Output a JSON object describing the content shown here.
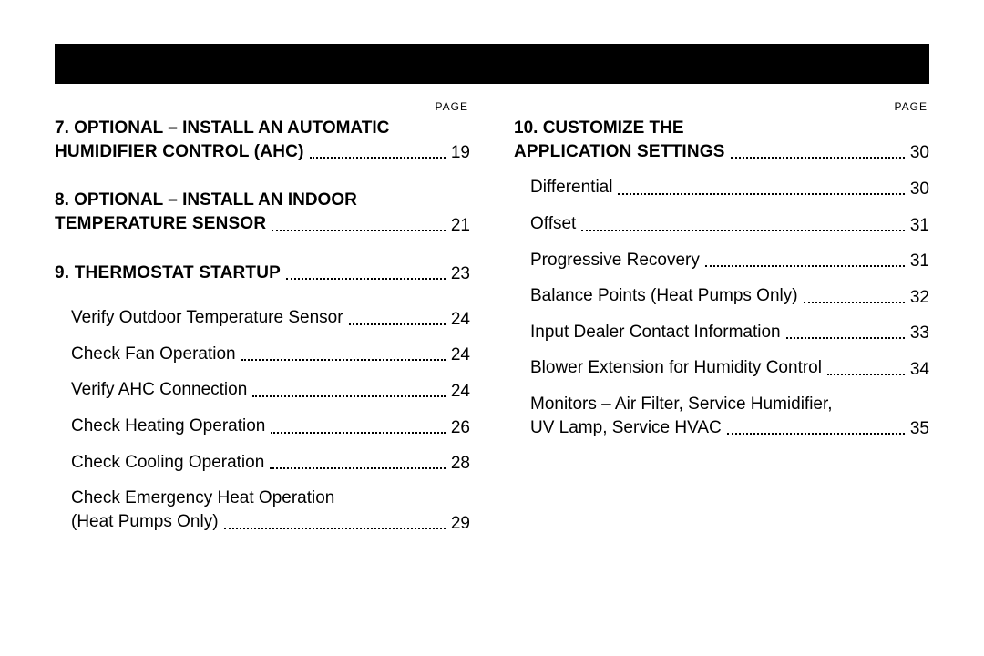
{
  "pageLabel": "PAGE",
  "left": [
    {
      "type": "section",
      "multi": true,
      "num": "7.",
      "line1": "OPTIONAL – INSTALL AN AUTOMATIC",
      "line2": "HUMIDIFIER CONTROL (AHC)",
      "page": "19"
    },
    {
      "type": "section",
      "multi": true,
      "num": "8.",
      "line1": "OPTIONAL – INSTALL AN INDOOR",
      "line2": "TEMPERATURE SENSOR",
      "page": "21"
    },
    {
      "type": "section",
      "num": "9.",
      "title": "THERMOSTAT STARTUP",
      "page": "23",
      "subs": [
        {
          "title": "Verify Outdoor Temperature Sensor",
          "page": "24"
        },
        {
          "title": "Check Fan Operation",
          "page": "24"
        },
        {
          "title": "Verify AHC Connection",
          "page": "24"
        },
        {
          "title": "Check Heating Operation",
          "page": "26"
        },
        {
          "title": "Check Cooling Operation",
          "page": "28"
        },
        {
          "multi": true,
          "line1": "Check Emergency Heat Operation",
          "line2": "(Heat Pumps Only)",
          "page": "29"
        }
      ]
    }
  ],
  "right": [
    {
      "type": "section",
      "multi": true,
      "num": "10.",
      "line1": "CUSTOMIZE THE",
      "line2": "APPLICATION SETTINGS",
      "page": "30",
      "subs": [
        {
          "title": "Differential",
          "page": "30"
        },
        {
          "title": "Offset",
          "page": "31"
        },
        {
          "title": "Progressive Recovery",
          "page": "31"
        },
        {
          "title": "Balance Points (Heat Pumps Only)",
          "page": "32"
        },
        {
          "title": "Input Dealer Contact Information",
          "page": "33"
        },
        {
          "title": "Blower Extension for Humidity Control",
          "page": "34"
        },
        {
          "multi": true,
          "line1": "Monitors – Air Filter, Service Humidifier,",
          "line2": "UV Lamp, Service HVAC",
          "page": "35"
        }
      ]
    }
  ]
}
